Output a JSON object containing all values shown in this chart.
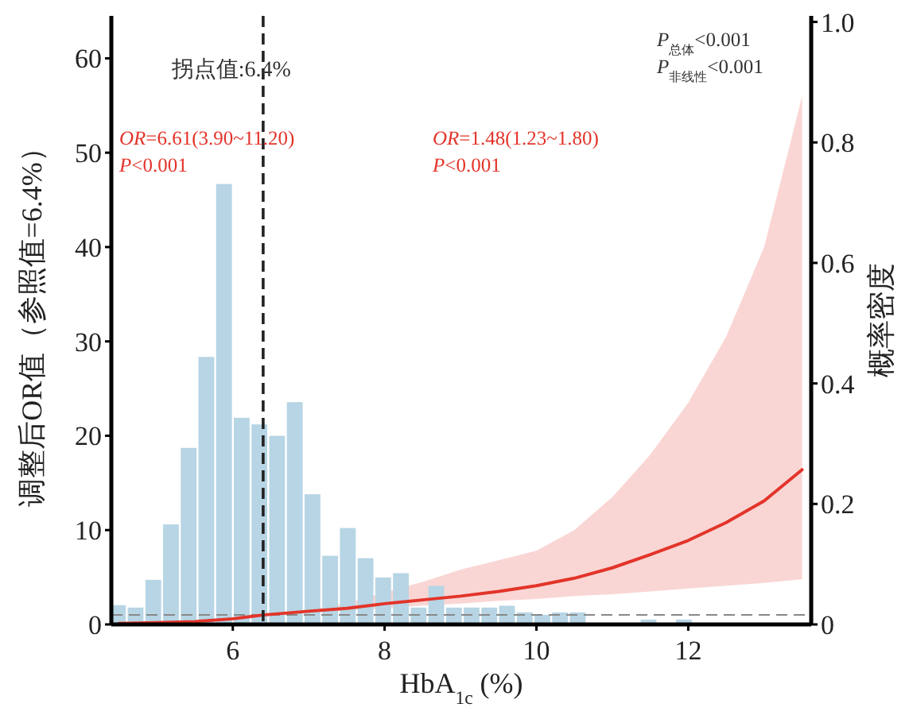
{
  "chart_data": {
    "type": "histogram",
    "xlabel": "HbA$_{1c}$ (%)",
    "ylabel": "调整后OR值（参照值=6.4%）",
    "y2label": "概率密度",
    "xlim": [
      4.4,
      13.62
    ],
    "xticks": [
      6,
      8,
      10,
      12
    ],
    "ylim": [
      0,
      64.5
    ],
    "yticks": [
      0,
      10,
      20,
      30,
      40,
      50,
      60
    ],
    "y2lim": [
      0,
      1.01
    ],
    "y2ticks": [
      0,
      0.2,
      0.4,
      0.6,
      0.8,
      {
        "value": 1,
        "label": "1.0"
      }
    ],
    "grid": false,
    "series": [
      {
        "axis": "y2",
        "color": "#b7d5e4",
        "bins": [
          4.37,
          4.603,
          4.836,
          5.069,
          5.302,
          5.535,
          5.768,
          6.001,
          6.234,
          6.467,
          6.7,
          6.933,
          7.166,
          7.399,
          7.632,
          7.865,
          8.098,
          8.331,
          8.564,
          8.797,
          9.03,
          9.263,
          9.496,
          9.729,
          9.962,
          10.195,
          10.428,
          10.661,
          10.894,
          11.127,
          11.36,
          11.593,
          11.826,
          12.059
        ],
        "values": [
          0.032,
          0.028,
          0.074,
          0.166,
          0.293,
          0.444,
          0.731,
          0.343,
          0.332,
          0.313,
          0.369,
          0.216,
          0.114,
          0.16,
          0.11,
          0.078,
          0.085,
          0.028,
          0.064,
          0.028,
          0.028,
          0.028,
          0.031,
          0.02,
          0.016,
          0.02,
          0.02,
          0,
          0,
          0,
          0.008,
          0,
          0.008
        ]
      },
      {
        "type": "line",
        "axis": "y",
        "color": "#e3342a",
        "x": [
          4.5,
          5.0,
          5.5,
          6.0,
          6.2,
          6.4,
          7,
          7.5,
          8,
          8.5,
          9,
          9.5,
          10,
          10.5,
          11,
          11.5,
          12,
          12.5,
          13,
          13.5
        ],
        "values": [
          0.1,
          0.2,
          0.3,
          0.6,
          0.8,
          1.0,
          1.4,
          1.7,
          2.2,
          2.6,
          3.0,
          3.5,
          4.1,
          4.9,
          6.0,
          7.4,
          8.9,
          10.8,
          13.1,
          16.4
        ],
        "lower": [
          null,
          null,
          null,
          null,
          null,
          1.0,
          1.2,
          1.5,
          1.7,
          2.0,
          2.2,
          2.5,
          2.7,
          3.0,
          3.2,
          3.5,
          3.8,
          4.1,
          4.4,
          4.8
        ],
        "upper": [
          null,
          null,
          null,
          null,
          null,
          1.0,
          1.6,
          2.2,
          3.4,
          4.5,
          5.8,
          6.8,
          7.8,
          10.0,
          13.5,
          18.0,
          23.5,
          30.5,
          40,
          56
        ]
      }
    ],
    "ref_lines": [
      {
        "axis": "x",
        "value": 6.4,
        "label": "拐点值:6.4%",
        "color": "#222222",
        "line_style": "dashed"
      },
      {
        "axis": "y",
        "value": 1,
        "color": "#888888",
        "line_style": "dashed"
      }
    ],
    "annotations": [
      "OR=6.61(3.90~11.20)\nP<0.001",
      "OR=1.48(1.23~1.80)\nP<0.001",
      "P$_{总体}$<0.001\nP$_{非线性}$<0.001"
    ]
  }
}
